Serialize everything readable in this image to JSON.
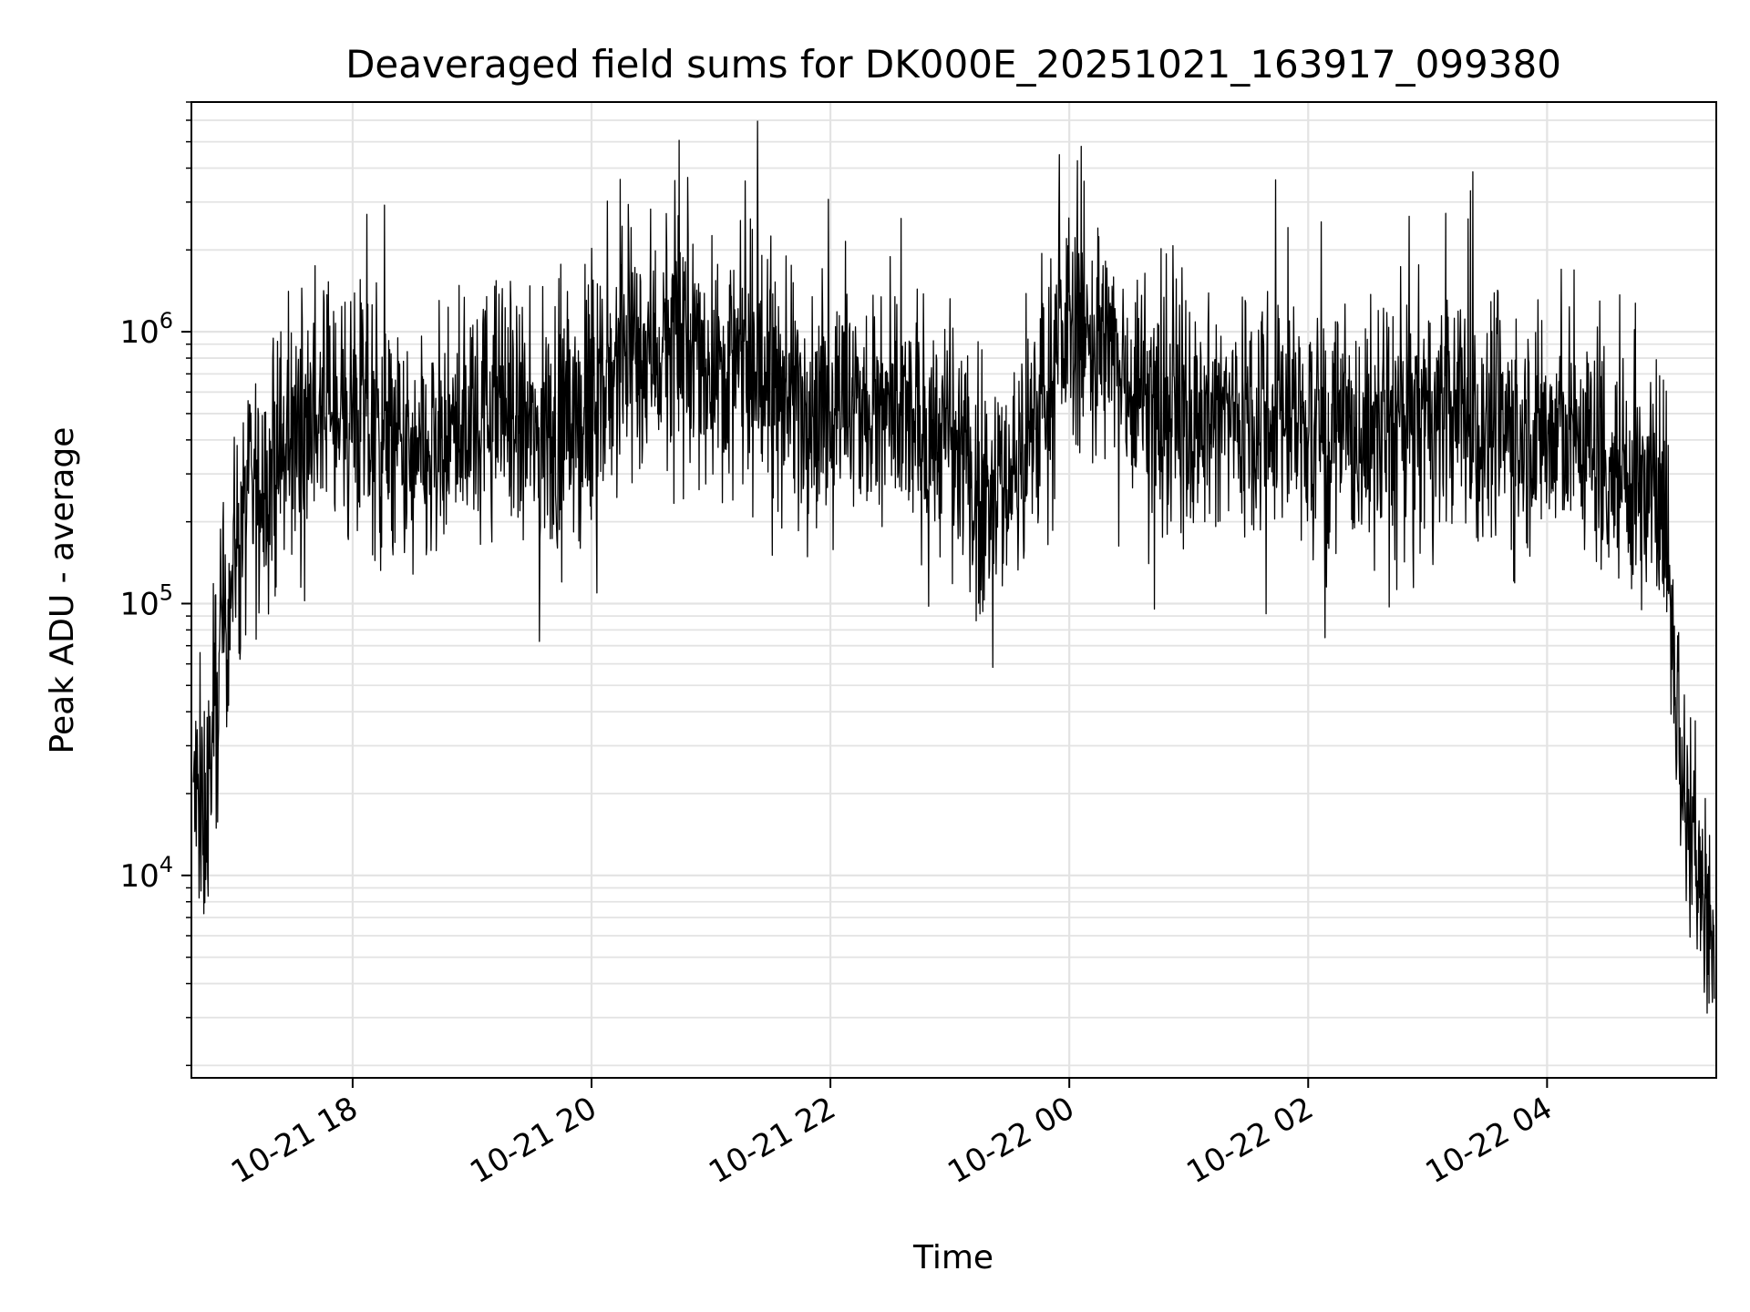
{
  "chart_data": {
    "type": "line",
    "title": "Deaveraged field sums for DK000E_20251021_163917_099380",
    "xlabel": "Time",
    "ylabel": "Peak ADU - average",
    "yscale": "log",
    "grid": true,
    "legend": "none",
    "line_color": "#000000",
    "xlim": [
      "2025-10-21 16:39",
      "2025-10-22 05:25"
    ],
    "ylim": [
      1800,
      7000000
    ],
    "x_ticks": [
      {
        "value": "2025-10-21 18:00",
        "label": "10-21 18"
      },
      {
        "value": "2025-10-21 20:00",
        "label": "10-21 20"
      },
      {
        "value": "2025-10-21 22:00",
        "label": "10-21 22"
      },
      {
        "value": "2025-10-22 00:00",
        "label": "10-22 00"
      },
      {
        "value": "2025-10-22 02:00",
        "label": "10-22 02"
      },
      {
        "value": "2025-10-22 04:00",
        "label": "10-22 04"
      }
    ],
    "y_ticks": [
      {
        "value": 10000,
        "base": "10",
        "exp": "4"
      },
      {
        "value": 100000,
        "base": "10",
        "exp": "5"
      },
      {
        "value": 1000000,
        "base": "10",
        "exp": "6"
      }
    ],
    "series": [
      {
        "x": [
          "2025-10-21 16:40",
          "2025-10-21 16:45",
          "2025-10-21 16:50",
          "2025-10-21 16:55",
          "2025-10-21 17:00",
          "2025-10-21 17:05",
          "2025-10-21 17:10",
          "2025-10-21 17:20",
          "2025-10-21 17:30",
          "2025-10-21 17:40",
          "2025-10-21 17:50",
          "2025-10-21 18:00",
          "2025-10-21 18:15",
          "2025-10-21 18:30",
          "2025-10-21 18:45",
          "2025-10-21 19:00",
          "2025-10-21 19:15",
          "2025-10-21 19:30",
          "2025-10-21 19:45",
          "2025-10-21 20:00",
          "2025-10-21 20:15",
          "2025-10-21 20:30",
          "2025-10-21 20:45",
          "2025-10-21 21:00",
          "2025-10-21 21:20",
          "2025-10-21 21:40",
          "2025-10-21 22:00",
          "2025-10-21 22:20",
          "2025-10-21 22:40",
          "2025-10-21 23:00",
          "2025-10-21 23:15",
          "2025-10-21 23:30",
          "2025-10-21 23:45",
          "2025-10-22 00:00",
          "2025-10-22 00:15",
          "2025-10-22 00:30",
          "2025-10-22 00:45",
          "2025-10-22 01:00",
          "2025-10-22 01:20",
          "2025-10-22 01:40",
          "2025-10-22 02:00",
          "2025-10-22 02:20",
          "2025-10-22 02:40",
          "2025-10-22 03:00",
          "2025-10-22 03:20",
          "2025-10-22 03:40",
          "2025-10-22 04:00",
          "2025-10-22 04:20",
          "2025-10-22 04:40",
          "2025-10-22 04:55",
          "2025-10-22 05:00",
          "2025-10-22 05:05",
          "2025-10-22 05:10",
          "2025-10-22 05:15",
          "2025-10-22 05:20",
          "2025-10-22 05:24"
        ],
        "y": [
          20000,
          15000,
          30000,
          80000,
          150000,
          200000,
          250000,
          300000,
          400000,
          500000,
          550000,
          500000,
          400000,
          300000,
          350000,
          500000,
          550000,
          400000,
          450000,
          500000,
          800000,
          900000,
          850000,
          800000,
          700000,
          600000,
          550000,
          500000,
          450000,
          400000,
          250000,
          300000,
          500000,
          1100000,
          900000,
          700000,
          550000,
          500000,
          500000,
          550000,
          450000,
          400000,
          450000,
          500000,
          480000,
          450000,
          420000,
          400000,
          300000,
          250000,
          200000,
          40000,
          20000,
          12000,
          8000,
          5000
        ]
      }
    ]
  }
}
